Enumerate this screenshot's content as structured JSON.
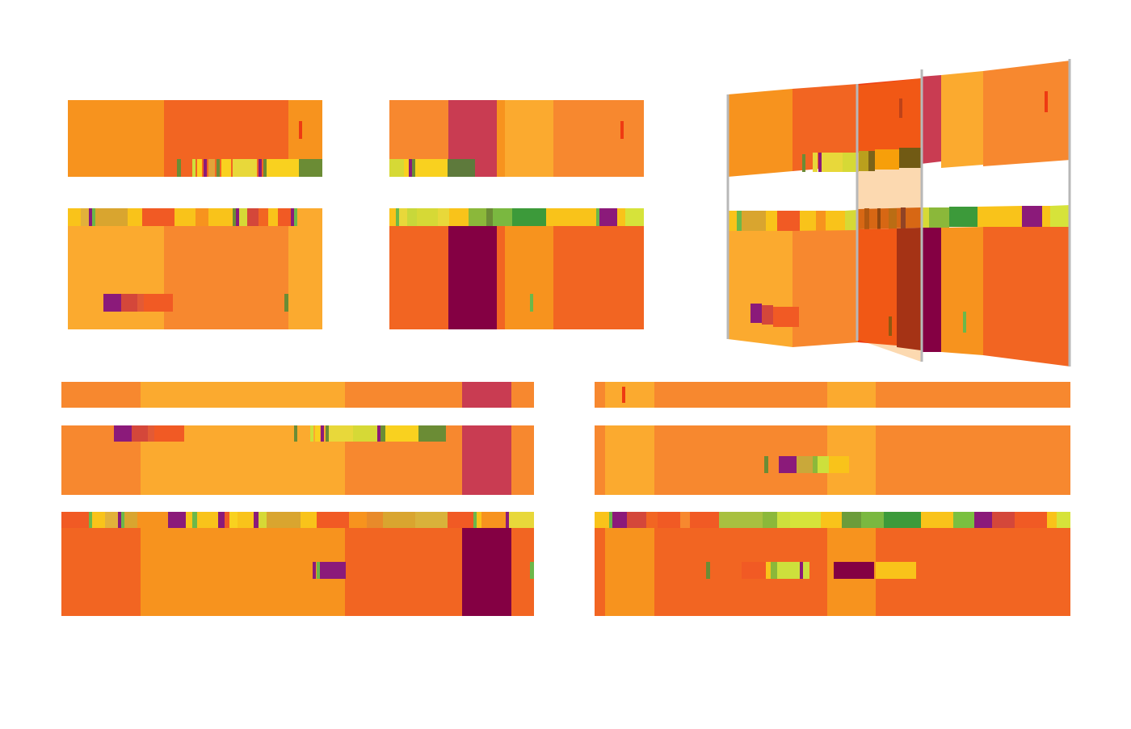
{
  "figure": {
    "panels": [
      {
        "id": "top-left"
      },
      {
        "id": "top-middle"
      },
      {
        "id": "top-right-perspective"
      },
      {
        "id": "bottom-left"
      },
      {
        "id": "bottom-right"
      }
    ]
  },
  "palette": {
    "orange": "#f7931e",
    "deep_orange": "#f26522",
    "light_orange": "#f7882f",
    "amber": "#fbaa2f",
    "rose": "#c93c52",
    "maroon": "#840043",
    "purple": "#8b1a7a",
    "yellow": "#f9d11f",
    "lime": "#cde03c",
    "green": "#6b8c35",
    "bright_green": "#3c9a3a",
    "red": "#ee3a12",
    "dark_red": "#7a0012"
  }
}
